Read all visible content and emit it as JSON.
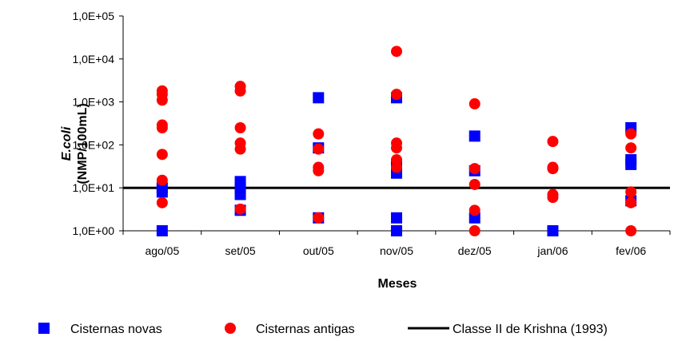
{
  "chart_data": {
    "type": "scatter",
    "title": "",
    "xlabel": "Meses",
    "ylabel_line1": "E.coli",
    "ylabel_line2": "(NMP/100mL)",
    "yscale": "log",
    "ylim": [
      1,
      100000
    ],
    "y_tick_values": [
      1,
      10,
      100,
      1000,
      10000,
      100000
    ],
    "y_tick_labels": [
      "1,0E+00",
      "1,0E+01",
      "1,0E+02",
      "1,0E+03",
      "1,0E+04",
      "1,0E+05"
    ],
    "categories": [
      "ago/05",
      "set/05",
      "out/05",
      "nov/05",
      "dez/05",
      "jan/06",
      "fev/06"
    ],
    "grid": false,
    "legend_position": "bottom",
    "series": [
      {
        "name": "Cisternas novas",
        "marker": "square",
        "color": "#0000ff",
        "points": [
          {
            "x": "ago/05",
            "y": 1
          },
          {
            "x": "ago/05",
            "y": 8
          },
          {
            "x": "ago/05",
            "y": 10
          },
          {
            "x": "set/05",
            "y": 3
          },
          {
            "x": "set/05",
            "y": 7
          },
          {
            "x": "set/05",
            "y": 10
          },
          {
            "x": "set/05",
            "y": 14
          },
          {
            "x": "out/05",
            "y": 2
          },
          {
            "x": "out/05",
            "y": 85
          },
          {
            "x": "out/05",
            "y": 1250
          },
          {
            "x": "nov/05",
            "y": 1
          },
          {
            "x": "nov/05",
            "y": 2
          },
          {
            "x": "nov/05",
            "y": 22
          },
          {
            "x": "nov/05",
            "y": 35
          },
          {
            "x": "nov/05",
            "y": 1250
          },
          {
            "x": "dez/05",
            "y": 2
          },
          {
            "x": "dez/05",
            "y": 25
          },
          {
            "x": "dez/05",
            "y": 160
          },
          {
            "x": "jan/06",
            "y": 1
          },
          {
            "x": "fev/06",
            "y": 5
          },
          {
            "x": "fev/06",
            "y": 35
          },
          {
            "x": "fev/06",
            "y": 45
          },
          {
            "x": "fev/06",
            "y": 250
          }
        ]
      },
      {
        "name": "Cisternas antigas",
        "marker": "circle",
        "color": "#ff0000",
        "points": [
          {
            "x": "ago/05",
            "y": 4.5
          },
          {
            "x": "ago/05",
            "y": 15
          },
          {
            "x": "ago/05",
            "y": 60
          },
          {
            "x": "ago/05",
            "y": 250
          },
          {
            "x": "ago/05",
            "y": 290
          },
          {
            "x": "ago/05",
            "y": 1100
          },
          {
            "x": "ago/05",
            "y": 1500
          },
          {
            "x": "ago/05",
            "y": 1800
          },
          {
            "x": "set/05",
            "y": 3.2
          },
          {
            "x": "set/05",
            "y": 80
          },
          {
            "x": "set/05",
            "y": 110
          },
          {
            "x": "set/05",
            "y": 250
          },
          {
            "x": "set/05",
            "y": 1800
          },
          {
            "x": "set/05",
            "y": 2300
          },
          {
            "x": "out/05",
            "y": 2
          },
          {
            "x": "out/05",
            "y": 25
          },
          {
            "x": "out/05",
            "y": 30
          },
          {
            "x": "out/05",
            "y": 80
          },
          {
            "x": "out/05",
            "y": 180
          },
          {
            "x": "nov/05",
            "y": 30
          },
          {
            "x": "nov/05",
            "y": 45
          },
          {
            "x": "nov/05",
            "y": 85
          },
          {
            "x": "nov/05",
            "y": 110
          },
          {
            "x": "nov/05",
            "y": 1500
          },
          {
            "x": "nov/05",
            "y": 15000
          },
          {
            "x": "dez/05",
            "y": 1
          },
          {
            "x": "dez/05",
            "y": 3
          },
          {
            "x": "dez/05",
            "y": 12
          },
          {
            "x": "dez/05",
            "y": 28
          },
          {
            "x": "dez/05",
            "y": 900
          },
          {
            "x": "jan/06",
            "y": 6
          },
          {
            "x": "jan/06",
            "y": 7
          },
          {
            "x": "jan/06",
            "y": 28
          },
          {
            "x": "jan/06",
            "y": 30
          },
          {
            "x": "jan/06",
            "y": 120
          },
          {
            "x": "fev/06",
            "y": 1
          },
          {
            "x": "fev/06",
            "y": 4.5
          },
          {
            "x": "fev/06",
            "y": 8
          },
          {
            "x": "fev/06",
            "y": 85
          },
          {
            "x": "fev/06",
            "y": 180
          }
        ]
      }
    ],
    "reference_line": {
      "name": "Classe II de Krishna (1993)",
      "y": 10,
      "color": "#000000"
    }
  }
}
